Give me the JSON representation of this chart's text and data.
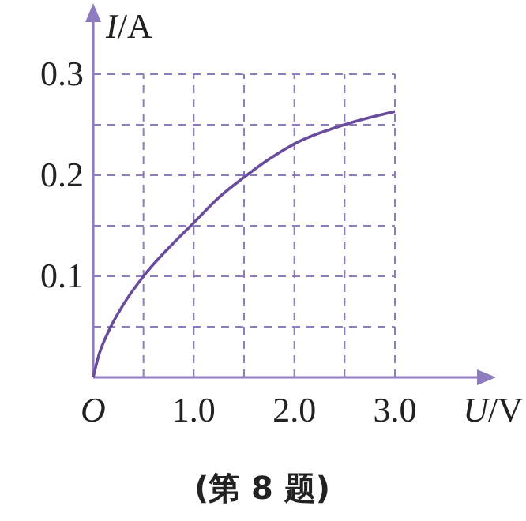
{
  "chart_data": {
    "type": "line",
    "xlabel": "U/V",
    "ylabel": "I/A",
    "annotations": [
      "(第 8 题)"
    ],
    "x": [
      0,
      0.05,
      0.15,
      0.3,
      0.5,
      0.75,
      1.0,
      1.25,
      1.5,
      1.75,
      2.0,
      2.5,
      3.0
    ],
    "series": [
      {
        "color": "#6a4c9c",
        "values": [
          0,
          0.02,
          0.045,
          0.072,
          0.1,
          0.128,
          0.153,
          0.178,
          0.198,
          0.216,
          0.231,
          0.25,
          0.263
        ]
      }
    ],
    "xlim": [
      0,
      3.0
    ],
    "ylim": [
      0,
      0.3
    ],
    "xticks": [
      {
        "value": 0,
        "label": "O"
      },
      {
        "value": 0.5,
        "label": null
      },
      {
        "value": 1.0,
        "label": "1.0"
      },
      {
        "value": 1.5,
        "label": null
      },
      {
        "value": 2.0,
        "label": "2.0"
      },
      {
        "value": 2.5,
        "label": null
      },
      {
        "value": 3.0,
        "label": "3.0"
      }
    ],
    "yticks": [
      {
        "value": 0.05,
        "label": null
      },
      {
        "value": 0.1,
        "label": "0.1"
      },
      {
        "value": 0.15,
        "label": null
      },
      {
        "value": 0.2,
        "label": "0.2"
      },
      {
        "value": 0.25,
        "label": null
      },
      {
        "value": 0.3,
        "label": "0.3"
      }
    ],
    "grid": true,
    "marker": "none",
    "line_style": "solid"
  }
}
